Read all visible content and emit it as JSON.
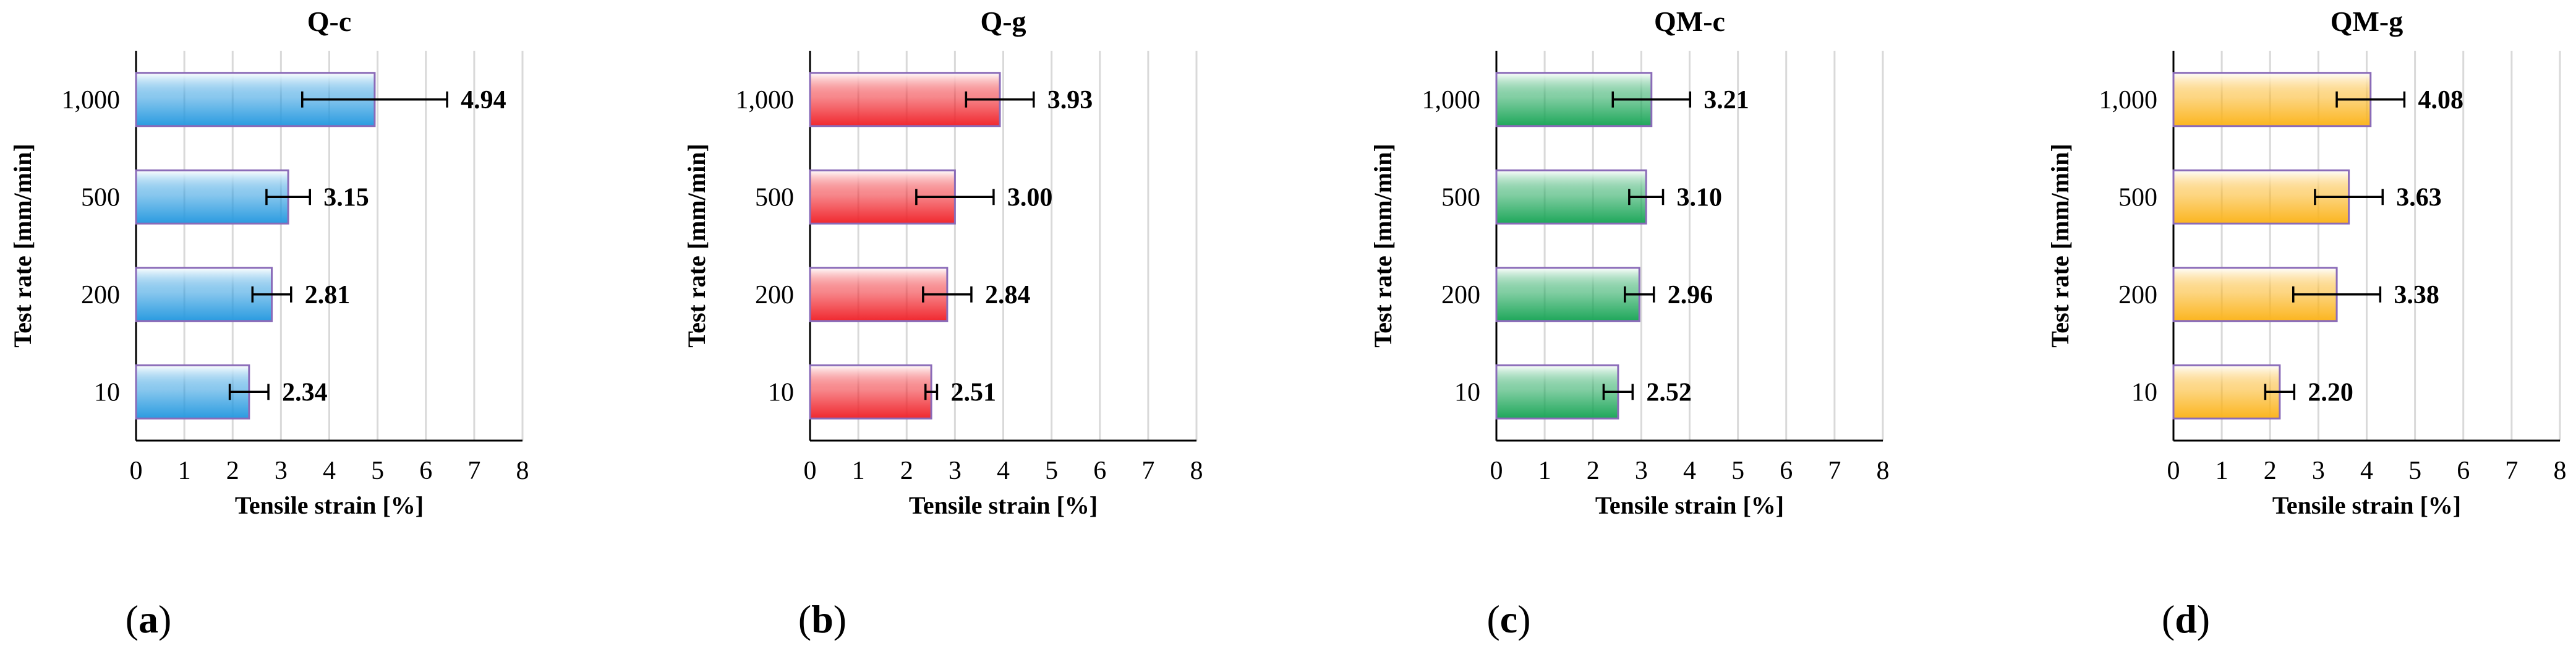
{
  "chart_data": [
    {
      "type": "bar",
      "orientation": "horizontal",
      "title": "Q-c",
      "panel_label": "a",
      "xlabel": "Tensile strain [%]",
      "ylabel": "Test rate [mm/min]",
      "categories": [
        "1,000",
        "500",
        "200",
        "10"
      ],
      "values": [
        4.94,
        3.15,
        2.81,
        2.34
      ],
      "value_labels": [
        "4.94",
        "3.15",
        "2.81",
        "2.34"
      ],
      "error": [
        1.5,
        0.45,
        0.4,
        0.4
      ],
      "xlim": [
        0,
        8
      ],
      "xticks": [
        "0",
        "1",
        "2",
        "3",
        "4",
        "5",
        "6",
        "7",
        "8"
      ],
      "grid": true,
      "color": "#2a9be0"
    },
    {
      "type": "bar",
      "orientation": "horizontal",
      "title": "Q-g",
      "panel_label": "b",
      "xlabel": "Tensile strain [%]",
      "ylabel": "Test rate [mm/min]",
      "categories": [
        "1,000",
        "500",
        "200",
        "10"
      ],
      "values": [
        3.93,
        3.0,
        2.84,
        2.51
      ],
      "value_labels": [
        "3.93",
        "3.00",
        "2.84",
        "2.51"
      ],
      "error": [
        0.7,
        0.8,
        0.5,
        0.12
      ],
      "xlim": [
        0,
        8
      ],
      "xticks": [
        "0",
        "1",
        "2",
        "3",
        "4",
        "5",
        "6",
        "7",
        "8"
      ],
      "grid": true,
      "color": "#f0282f"
    },
    {
      "type": "bar",
      "orientation": "horizontal",
      "title": "QM-c",
      "panel_label": "c",
      "xlabel": "Tensile strain [%]",
      "ylabel": "Test rate [mm/min]",
      "categories": [
        "1,000",
        "500",
        "200",
        "10"
      ],
      "values": [
        3.21,
        3.1,
        2.96,
        2.52
      ],
      "value_labels": [
        "3.21",
        "3.10",
        "2.96",
        "2.52"
      ],
      "error": [
        0.8,
        0.35,
        0.3,
        0.3
      ],
      "xlim": [
        0,
        8
      ],
      "xticks": [
        "0",
        "1",
        "2",
        "3",
        "4",
        "5",
        "6",
        "7",
        "8"
      ],
      "grid": true,
      "color": "#1ea75a"
    },
    {
      "type": "bar",
      "orientation": "horizontal",
      "title": "QM-g",
      "panel_label": "d",
      "xlabel": "Tensile strain [%]",
      "ylabel": "Test rate [mm/min]",
      "categories": [
        "1,000",
        "500",
        "200",
        "10"
      ],
      "values": [
        4.08,
        3.63,
        3.38,
        2.2
      ],
      "value_labels": [
        "4.08",
        "3.63",
        "3.38",
        "2.20"
      ],
      "error": [
        0.7,
        0.7,
        0.9,
        0.3
      ],
      "xlim": [
        0,
        8
      ],
      "xticks": [
        "0",
        "1",
        "2",
        "3",
        "4",
        "5",
        "6",
        "7",
        "8"
      ],
      "grid": true,
      "color": "#fbb51f"
    }
  ]
}
